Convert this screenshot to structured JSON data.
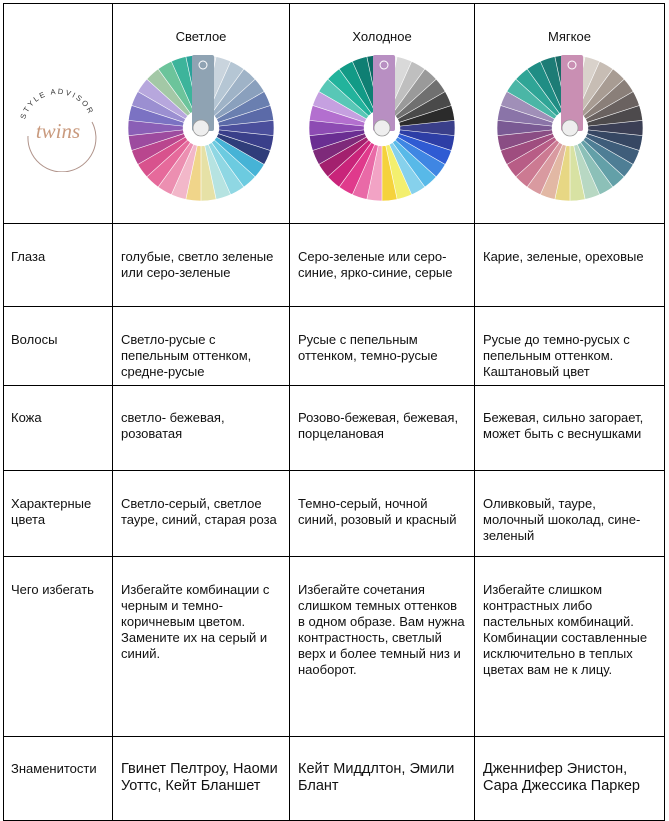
{
  "logo": {
    "arc_text": "STYLE ADVISOR",
    "script_text": "twins",
    "color": "#c99a7e"
  },
  "seasons": [
    {
      "name": "Светлое",
      "swatch_colors": [
        "#dfe4ea",
        "#c9d4dd",
        "#b5c6d4",
        "#9fb3c7",
        "#8aa0bd",
        "#6a7fb0",
        "#5b6aa8",
        "#4b4f9c",
        "#3a3f8a",
        "#2f3d7a",
        "#46b3d6",
        "#6ccbe0",
        "#8fd7e3",
        "#b6e3e1",
        "#e6e1a6",
        "#f0d58a",
        "#f2b7c9",
        "#ec8fb1",
        "#e66a9b",
        "#d8528d",
        "#b9468e",
        "#9d4b9f",
        "#8a5fb6",
        "#7b72c3",
        "#9b8fd1",
        "#b7a7dd",
        "#a3c8a6",
        "#6cc49b",
        "#3db49b",
        "#2aa29a"
      ]
    },
    {
      "name": "Холодное",
      "swatch_colors": [
        "#f1f1f1",
        "#d9d9d9",
        "#bfbfbf",
        "#9a9a9a",
        "#707070",
        "#4a4a4a",
        "#2b2b2b",
        "#3a3f8a",
        "#2d3ea6",
        "#2f5bd3",
        "#3f86e3",
        "#58b9e8",
        "#86d1ec",
        "#f3ef6e",
        "#f5d23c",
        "#f2a3c5",
        "#e96aa7",
        "#e03a8c",
        "#c9247a",
        "#a3206e",
        "#7e2a7a",
        "#6a2e92",
        "#8d4bb3",
        "#b36fcf",
        "#c5a0e0",
        "#58c7b6",
        "#22b39c",
        "#129a86",
        "#0f7f73",
        "#0b6a64"
      ]
    },
    {
      "name": "Мягкое",
      "swatch_colors": [
        "#ece8e4",
        "#d9d2cb",
        "#c7bdb4",
        "#a89c93",
        "#8a7f79",
        "#6a6260",
        "#4d4a4c",
        "#3b3f55",
        "#364763",
        "#3f5d7a",
        "#4e7e95",
        "#63a0a8",
        "#8cc0b8",
        "#b8d8c3",
        "#d8e2a3",
        "#e7d784",
        "#e2b8a4",
        "#d99aa0",
        "#cc7a92",
        "#b85d86",
        "#9f4d7f",
        "#8a4d84",
        "#7a5a94",
        "#8a74a8",
        "#a08fb8",
        "#4bb6a6",
        "#2fa596",
        "#1f8d84",
        "#1d7c76",
        "#1a6b67"
      ]
    }
  ],
  "rows": [
    {
      "label": "Глаза",
      "cells": [
        "голубые, светло зеленые или серо-зеленые",
        "Серо-зеленые или серо-синие, ярко-синие, серые",
        "Карие, зеленые, ореховые"
      ]
    },
    {
      "label": "Волосы",
      "cells": [
        "Светло-русые с пепельным оттенком, средне-русые",
        "Русые с пепельным оттенком, темно-русые",
        "Русые до темно-русых с пепельным оттенком. Каштановый цвет"
      ]
    },
    {
      "label": "Кожа",
      "cells": [
        "светло- бежевая, розоватая",
        "Розово-бежевая, бежевая, порцелановая",
        "Бежевая, сильно загорает, может быть с веснушками"
      ]
    },
    {
      "label": "Характерные цвета",
      "cells": [
        "Светло-серый, светлое тауре, синий, старая роза",
        "Темно-серый, ночной синий, розовый и красный",
        "Оливковый, тауре, молочный шоколад, сине-зеленый"
      ]
    },
    {
      "label": "Чего избегать",
      "cells": [
        "Избегайте комбинации с черным и темно-коричневым цветом. Замените их на серый и синий.",
        "Избегайте сочетания слишком темных оттенков в одном образе. Вам нужна контрастность, светлый верх и более темный низ и наоборот.",
        "Избегайте слишком контрастных либо пастельных комбинаций. Комбинации составленные исключительно в теплых цветах вам не к лицу."
      ]
    },
    {
      "label": "Знаменитости",
      "cells": [
        " Гвинет Пелтроу, Наоми Уоттс, Кейт Бланшет",
        "Кейт Миддлтон, Эмили Блант",
        "Дженнифер Энистон, Сара Джессика Паркер"
      ]
    }
  ],
  "tab_colors": [
    "#8fa3b3",
    "#b88fc2",
    "#c98fb3"
  ]
}
